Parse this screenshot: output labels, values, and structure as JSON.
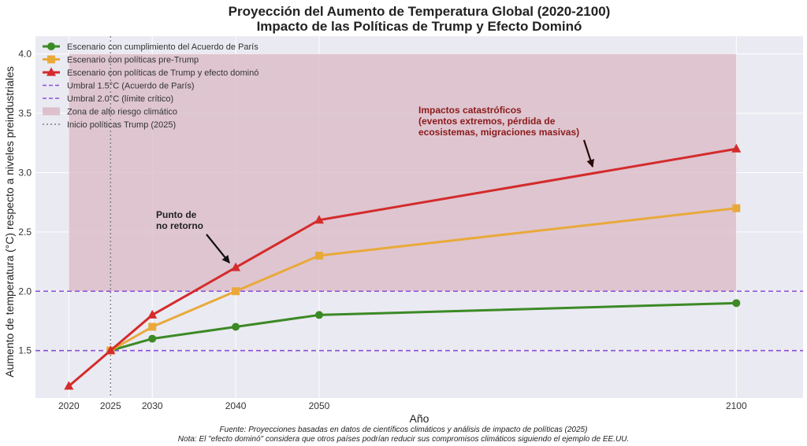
{
  "chart_data": {
    "type": "line",
    "title": "Proyección del Aumento de Temperatura Global (2020-2100)",
    "subtitle": "Impacto de las Políticas de Trump y Efecto Dominó",
    "xlabel": "Año",
    "ylabel": "Aumento de temperatura (°C) respecto a niveles preindustriales",
    "x": [
      2020,
      2025,
      2030,
      2040,
      2050,
      2100
    ],
    "x_ticks": [
      "2020",
      "2025",
      "2030",
      "2040",
      "2050",
      "2100"
    ],
    "y_ticks": [
      "1.5",
      "2.0",
      "2.5",
      "3.0",
      "3.5",
      "4.0"
    ],
    "ylim": [
      1.1,
      4.15
    ],
    "xlim": [
      2016,
      2108
    ],
    "grid": true,
    "legend_position": "top-left",
    "series": [
      {
        "name": "Escenario con cumplimiento del Acuerdo de París",
        "color": "#3b8a25",
        "marker": "circle",
        "values": [
          null,
          1.5,
          1.6,
          1.7,
          1.8,
          1.9
        ]
      },
      {
        "name": "Escenario con políticas pre-Trump",
        "color": "#e9a93a",
        "marker": "square",
        "values": [
          null,
          1.5,
          1.7,
          2.0,
          2.3,
          2.7
        ]
      },
      {
        "name": "Escenario con políticas de Trump y efecto dominó",
        "color": "#d42b2b",
        "marker": "triangle",
        "values": [
          1.2,
          1.5,
          1.8,
          2.2,
          2.6,
          3.2
        ]
      }
    ],
    "reference_lines": [
      {
        "name": "Umbral 1.5°C (Acuerdo de París)",
        "value": 1.5,
        "color": "#8a4fd8"
      },
      {
        "name": "Umbral 2.0°C (límite crítico)",
        "value": 2.0,
        "color": "#8a4fd8"
      }
    ],
    "risk_zone": {
      "name": "Zona de alto riesgo climático",
      "x": [
        2020,
        2100
      ],
      "y": [
        2.0,
        4.0
      ],
      "color": "#d9b8c4"
    },
    "vline": {
      "name": "Inicio políticas Trump (2025)",
      "x": 2025,
      "color": "#777788"
    },
    "annotations": [
      {
        "lines": [
          "Punto de",
          "no retorno"
        ],
        "point_x": 2040,
        "point_y": 2.2,
        "color": "#222222"
      },
      {
        "lines": [
          "Impactos catastróficos",
          "(eventos extremos, pérdida de",
          "ecosistemas, migraciones masivas)"
        ],
        "point_x": 2080,
        "point_y": 3.0,
        "color": "#8b1a1a"
      }
    ]
  },
  "footer": {
    "source": "Fuente: Proyecciones basadas en datos de científicos climáticos y análisis de impacto de políticas (2025)",
    "note": "Nota: El \"efecto dominó\" considera que otros países podrían reducir sus compromisos climáticos siguiendo el ejemplo de EE.UU."
  }
}
